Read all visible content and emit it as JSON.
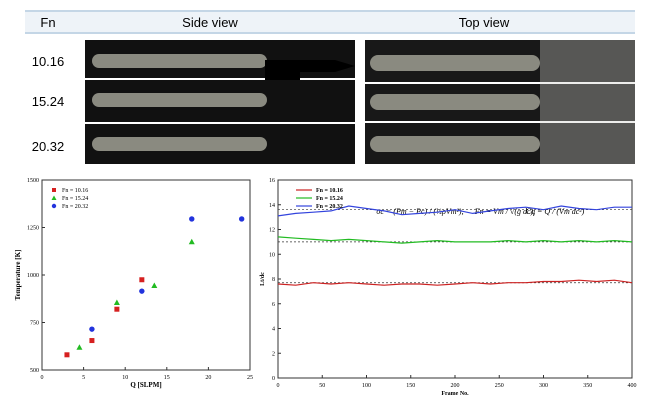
{
  "table": {
    "header": [
      "Fn",
      "Side view",
      "Top view"
    ],
    "rows": [
      "10.16",
      "15.24",
      "20.32"
    ]
  },
  "chart_data": [
    {
      "type": "scatter",
      "xlabel": "Q [SLPM]",
      "ylabel": "Temperature [K]",
      "xlim": [
        0,
        25
      ],
      "xticks": [
        0,
        5,
        10,
        15,
        20,
        25
      ],
      "ylim": [
        500,
        1500
      ],
      "yticks": [
        500,
        750,
        1000,
        1250,
        1500
      ],
      "series": [
        {
          "name": "Fn = 10.16",
          "color": "#d62020",
          "marker": "square",
          "x": [
            3,
            6,
            9,
            12
          ],
          "values": [
            580,
            655,
            820,
            975
          ]
        },
        {
          "name": "Fn = 15.24",
          "color": "#22bb22",
          "marker": "triangle",
          "x": [
            4.5,
            9,
            13.5,
            18
          ],
          "values": [
            620,
            855,
            945,
            1175
          ]
        },
        {
          "name": "Fn = 20.32",
          "color": "#2233dd",
          "marker": "circle",
          "x": [
            6,
            12,
            18,
            24
          ],
          "values": [
            715,
            915,
            1295,
            1295
          ]
        }
      ]
    },
    {
      "type": "line",
      "xlabel": "Frame No.",
      "ylabel": "Lt/dc",
      "xlim": [
        0,
        400
      ],
      "xticks": [
        0,
        50,
        100,
        150,
        200,
        250,
        300,
        350,
        400
      ],
      "ylim": [
        0,
        16
      ],
      "yticks": [
        0,
        2,
        4,
        6,
        8,
        10,
        12,
        14,
        16
      ],
      "annotations": [
        "σc = (Pm − Pc) / (½ρVm²),",
        "Fn = Vm / √(g dc),",
        "Cq = Q / (Vm dc²)"
      ],
      "reference_lines": [
        7.7,
        11.0,
        13.6
      ],
      "series": [
        {
          "name": "Fn = 10.16",
          "color": "#cc2222",
          "x": [
            0,
            20,
            40,
            60,
            80,
            100,
            120,
            140,
            160,
            180,
            200,
            220,
            240,
            260,
            280,
            300,
            320,
            340,
            360,
            380,
            400
          ],
          "values": [
            7.6,
            7.5,
            7.7,
            7.6,
            7.7,
            7.6,
            7.5,
            7.6,
            7.6,
            7.5,
            7.6,
            7.7,
            7.6,
            7.7,
            7.7,
            7.8,
            7.8,
            7.9,
            7.8,
            7.9,
            7.7
          ]
        },
        {
          "name": "Fn = 15.24",
          "color": "#22bb22",
          "x": [
            0,
            20,
            40,
            60,
            80,
            100,
            120,
            140,
            160,
            180,
            200,
            220,
            240,
            260,
            280,
            300,
            320,
            340,
            360,
            380,
            400
          ],
          "values": [
            11.4,
            11.3,
            11.2,
            11.1,
            11.2,
            11.1,
            11.0,
            10.9,
            11.0,
            11.1,
            11.0,
            11.0,
            11.0,
            11.1,
            11.0,
            11.1,
            11.0,
            11.1,
            11.0,
            11.1,
            11.0
          ]
        },
        {
          "name": "Fn = 20.32",
          "color": "#3344dd",
          "x": [
            0,
            20,
            40,
            60,
            80,
            100,
            120,
            140,
            160,
            180,
            200,
            220,
            240,
            260,
            280,
            300,
            320,
            340,
            360,
            380,
            400
          ],
          "values": [
            13.1,
            13.3,
            13.4,
            13.5,
            13.9,
            13.7,
            13.5,
            13.2,
            13.3,
            13.4,
            13.6,
            13.3,
            13.5,
            13.7,
            13.8,
            13.6,
            13.9,
            13.7,
            13.6,
            13.8,
            13.8
          ]
        }
      ]
    }
  ]
}
